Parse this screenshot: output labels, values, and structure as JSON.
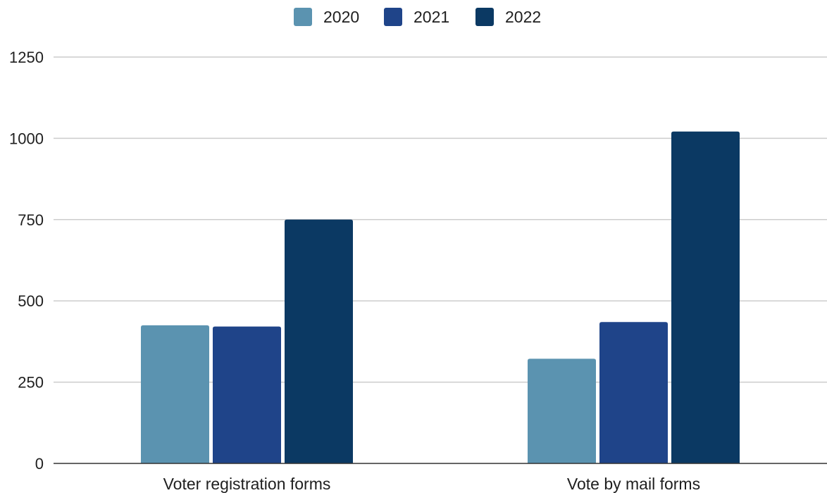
{
  "chart_data": {
    "type": "bar",
    "categories": [
      "Voter registration forms",
      "Vote by mail forms"
    ],
    "series": [
      {
        "name": "2020",
        "values": [
          425,
          322
        ],
        "color": "#5b93b0"
      },
      {
        "name": "2021",
        "values": [
          421,
          435
        ],
        "color": "#1f4489"
      },
      {
        "name": "2022",
        "values": [
          750,
          1021
        ],
        "color": "#0b3963"
      }
    ],
    "title": "",
    "xlabel": "",
    "ylabel": "",
    "ylim": [
      0,
      1250
    ],
    "yticks": [
      0,
      250,
      500,
      750,
      1000,
      1250
    ],
    "grid": true,
    "legend_position": "top-center"
  }
}
